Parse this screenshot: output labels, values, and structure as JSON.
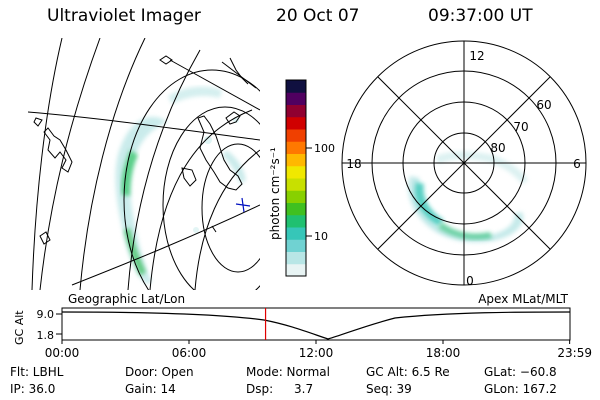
{
  "header": {
    "instrument": "Ultraviolet Imager",
    "date": "20 Oct 07",
    "time": "09:37:00 UT"
  },
  "colorbar": {
    "unit_label": "photon cm⁻²s⁻¹",
    "ticks": [
      "100",
      "10"
    ],
    "colors": [
      "#e8f4f4",
      "#b8e6e6",
      "#70d2d2",
      "#36c6b8",
      "#20c070",
      "#40c020",
      "#88d000",
      "#c8e000",
      "#f0e800",
      "#ffb800",
      "#ff7800",
      "#f04000",
      "#d00000",
      "#900030",
      "#500060",
      "#101040"
    ]
  },
  "geo_panel": {
    "label": "Geographic Lat/Lon"
  },
  "polar_panel": {
    "label": "Apex MLat/MLT",
    "mlt_labels": {
      "top": "12",
      "left": "18",
      "right": "6",
      "bottom": "0"
    },
    "lat_labels": [
      "60",
      "70",
      "80"
    ]
  },
  "timeline": {
    "ylabel": "GC Alt",
    "y_ticks": [
      "9.0",
      "1.8"
    ],
    "x_ticks": [
      "00:00",
      "06:00",
      "12:00",
      "18:00",
      "23:59"
    ],
    "marker_time_hours": 9.617
  },
  "info": {
    "row1": {
      "filter": "Flt: LBHL",
      "door": "Door: Open",
      "mode": "Mode: Normal",
      "gc_alt": "GC Alt: 6.5 Re",
      "glat": "GLat: −60.8"
    },
    "row2": {
      "ip": "IP: 36.0",
      "gain": "Gain: 14",
      "dsp_label": "Dsp:",
      "dsp_value": "3.7",
      "seq": "Seq: 39",
      "glon": "GLon: 167.2"
    }
  },
  "colors": {
    "marker": "#e00000",
    "line": "#000000"
  }
}
